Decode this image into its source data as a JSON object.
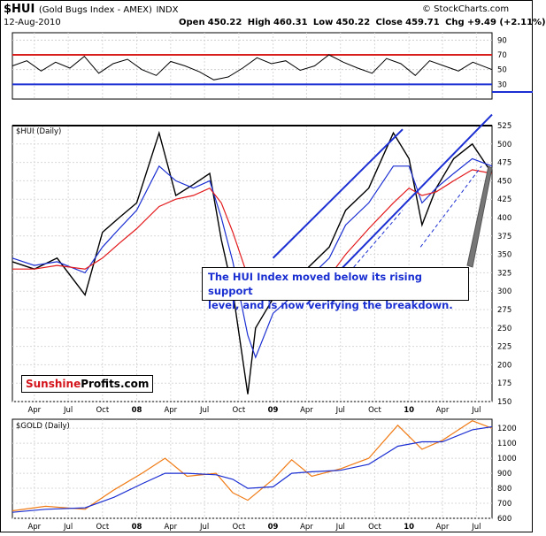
{
  "header": {
    "symbol": "$HUI",
    "name": "(Gold Bugs Index - AMEX)",
    "exchange": "INDX",
    "date": "12-Aug-2010",
    "open_label": "Open",
    "open": "450.22",
    "high_label": "High",
    "high": "460.31",
    "low_label": "Low",
    "low": "450.22",
    "close_label": "Close",
    "close": "459.71",
    "chg_label": "Chg",
    "chg": "+9.49 (+2.11%)",
    "source": "© StockCharts.com"
  },
  "annotation": {
    "line1": "The HUI Index moved below its rising support",
    "line2": "level, and is now verifying the breakdown."
  },
  "brand": {
    "part1": "Sunshine",
    "part2": "Profits.com"
  },
  "colors": {
    "price": "#000000",
    "ma_short": "#1b2fd2",
    "ma_long": "#e31a1c",
    "trend": "#1b2fd2",
    "gold": "#f07c17",
    "rsi_upper": "#d91e1e",
    "rsi_lower": "#1b2fd2"
  },
  "chart_data": [
    {
      "type": "line",
      "panel": "rsi",
      "ylim": [
        10,
        100
      ],
      "y_ticks": [
        30,
        50,
        70,
        90
      ],
      "reference_lines": [
        70,
        30
      ],
      "x": [
        0,
        0.03,
        0.06,
        0.09,
        0.12,
        0.15,
        0.18,
        0.21,
        0.24,
        0.27,
        0.3,
        0.33,
        0.36,
        0.39,
        0.42,
        0.45,
        0.48,
        0.51,
        0.54,
        0.57,
        0.6,
        0.63,
        0.66,
        0.69,
        0.72,
        0.75,
        0.78,
        0.81,
        0.84,
        0.87,
        0.9,
        0.93,
        0.96,
        1.0
      ],
      "values": [
        55,
        62,
        48,
        60,
        52,
        68,
        45,
        58,
        64,
        50,
        42,
        61,
        55,
        47,
        36,
        40,
        52,
        66,
        58,
        62,
        49,
        55,
        70,
        60,
        52,
        45,
        65,
        58,
        42,
        62,
        55,
        48,
        60,
        50
      ]
    },
    {
      "type": "line",
      "panel": "price",
      "title": "$HUI (Daily)",
      "ylim": [
        150,
        525
      ],
      "y_ticks": [
        150,
        175,
        200,
        225,
        250,
        275,
        300,
        325,
        350,
        375,
        400,
        425,
        450,
        475,
        500,
        525
      ],
      "x_ticks": [
        "Apr",
        "Jul",
        "Oct",
        "08",
        "Apr",
        "Jul",
        "Oct",
        "09",
        "Apr",
        "Jul",
        "Oct",
        "10",
        "Apr",
        "Jul"
      ],
      "dates": [
        "2007-02-01",
        "2007-04-01",
        "2007-06-01",
        "2007-08-15",
        "2007-10-01",
        "2007-11-15",
        "2008-01-01",
        "2008-03-01",
        "2008-04-15",
        "2008-06-01",
        "2008-07-15",
        "2008-08-15",
        "2008-09-15",
        "2008-10-25",
        "2008-11-15",
        "2009-01-01",
        "2009-02-15",
        "2009-04-01",
        "2009-06-01",
        "2009-07-15",
        "2009-09-15",
        "2009-11-20",
        "2010-01-01",
        "2010-02-05",
        "2010-03-15",
        "2010-05-01",
        "2010-06-20",
        "2010-08-12"
      ],
      "series": [
        {
          "name": "$HUI",
          "values": [
            340,
            330,
            345,
            295,
            380,
            400,
            420,
            515,
            430,
            445,
            460,
            370,
            300,
            160,
            250,
            290,
            300,
            330,
            360,
            410,
            440,
            515,
            480,
            390,
            440,
            480,
            500,
            460
          ]
        },
        {
          "values": [
            345,
            335,
            340,
            325,
            360,
            385,
            410,
            470,
            450,
            440,
            450,
            400,
            340,
            240,
            210,
            270,
            290,
            315,
            345,
            390,
            420,
            470,
            470,
            420,
            440,
            460,
            480,
            470
          ]
        },
        {
          "values": [
            330,
            330,
            335,
            330,
            345,
            365,
            385,
            415,
            425,
            430,
            440,
            420,
            380,
            320,
            290,
            290,
            290,
            300,
            320,
            350,
            385,
            420,
            440,
            430,
            435,
            450,
            465,
            460
          ]
        }
      ],
      "trendlines": [
        {
          "from": [
            "2009-01-01",
            345
          ],
          "to": [
            "2009-12-15",
            520
          ]
        },
        {
          "from": [
            "2009-04-01",
            282
          ],
          "to": [
            "2010-08-12",
            540
          ]
        },
        {
          "from": [
            "2010-02-01",
            360
          ],
          "to": [
            "2010-07-15",
            470
          ]
        },
        {
          "from": [
            "2009-07-15",
            320
          ],
          "to": [
            "2009-12-15",
            410
          ]
        }
      ],
      "resistance": 525
    },
    {
      "type": "line",
      "panel": "gold",
      "title": "$GOLD (Daily)",
      "ylim": [
        600,
        1260
      ],
      "y_ticks": [
        600,
        700,
        800,
        900,
        1000,
        1100,
        1200
      ],
      "x_ticks": [
        "Apr",
        "Jul",
        "Oct",
        "08",
        "Apr",
        "Jul",
        "Oct",
        "09",
        "Apr",
        "Jul",
        "Oct",
        "10",
        "Apr",
        "Jul"
      ],
      "dates": [
        "2007-02-01",
        "2007-05-01",
        "2007-08-15",
        "2007-11-01",
        "2008-01-15",
        "2008-03-17",
        "2008-05-15",
        "2008-08-01",
        "2008-09-15",
        "2008-10-25",
        "2009-01-01",
        "2009-02-20",
        "2009-04-15",
        "2009-07-01",
        "2009-09-15",
        "2009-12-02",
        "2010-02-05",
        "2010-04-01",
        "2010-06-20",
        "2010-08-12"
      ],
      "series": [
        {
          "name": "$GOLD",
          "values": [
            650,
            680,
            660,
            790,
            900,
            1000,
            880,
            900,
            770,
            720,
            860,
            990,
            880,
            930,
            1000,
            1220,
            1060,
            1120,
            1250,
            1200
          ]
        },
        {
          "values": [
            640,
            660,
            670,
            740,
            830,
            900,
            900,
            890,
            860,
            800,
            810,
            900,
            910,
            920,
            960,
            1080,
            1110,
            1110,
            1190,
            1210
          ]
        }
      ]
    }
  ]
}
